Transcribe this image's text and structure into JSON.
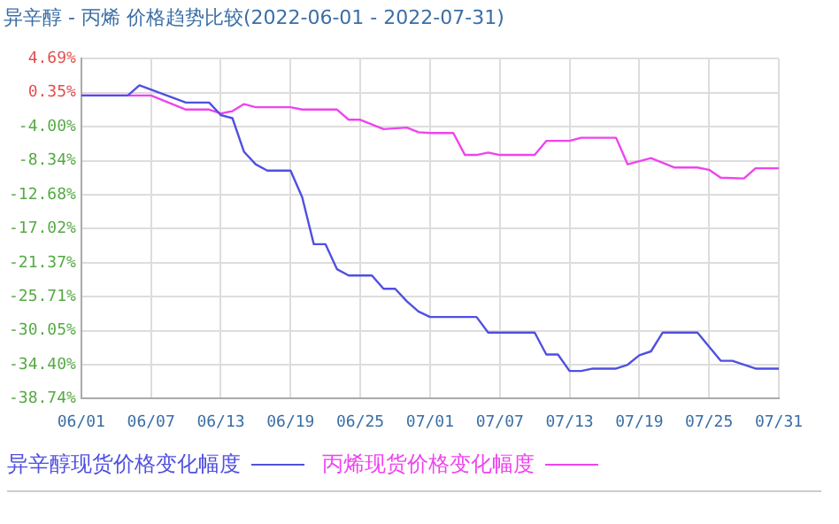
{
  "chart_data": {
    "type": "line",
    "title": "异辛醇 - 丙烯 价格趋势比较(2022-06-01 - 2022-07-31)",
    "series": [
      {
        "name": "异辛醇现货价格变化幅度",
        "color": "#5050e0",
        "x": [
          "2022-06-01",
          "2022-06-05",
          "2022-06-06",
          "2022-06-10",
          "2022-06-12",
          "2022-06-13",
          "2022-06-14",
          "2022-06-15",
          "2022-06-16",
          "2022-06-17",
          "2022-06-19",
          "2022-06-20",
          "2022-06-21",
          "2022-06-22",
          "2022-06-23",
          "2022-06-24",
          "2022-06-26",
          "2022-06-27",
          "2022-06-28",
          "2022-06-29",
          "2022-06-30",
          "2022-07-01",
          "2022-07-05",
          "2022-07-06",
          "2022-07-10",
          "2022-07-11",
          "2022-07-12",
          "2022-07-13",
          "2022-07-14",
          "2022-07-15",
          "2022-07-17",
          "2022-07-18",
          "2022-07-19",
          "2022-07-20",
          "2022-07-21",
          "2022-07-24",
          "2022-07-26",
          "2022-07-27",
          "2022-07-29",
          "2022-07-31"
        ],
        "values": [
          0,
          0,
          1.3,
          -0.9,
          -0.9,
          -2.5,
          -2.9,
          -7.2,
          -8.8,
          -9.6,
          -9.6,
          -13.0,
          -19.0,
          -19.0,
          -22.2,
          -23.0,
          -23.0,
          -24.7,
          -24.7,
          -26.3,
          -27.6,
          -28.3,
          -28.3,
          -30.3,
          -30.3,
          -33.1,
          -33.1,
          -35.2,
          -35.2,
          -34.9,
          -34.9,
          -34.4,
          -33.2,
          -32.7,
          -30.3,
          -30.3,
          -33.9,
          -33.9,
          -34.9,
          -34.9
        ]
      },
      {
        "name": "丙烯现货价格变化幅度",
        "color": "#ee44ee",
        "x": [
          "2022-06-01",
          "2022-06-07",
          "2022-06-10",
          "2022-06-12",
          "2022-06-13",
          "2022-06-14",
          "2022-06-15",
          "2022-06-16",
          "2022-06-19",
          "2022-06-20",
          "2022-06-23",
          "2022-06-24",
          "2022-06-25",
          "2022-06-27",
          "2022-06-29",
          "2022-06-30",
          "2022-07-01",
          "2022-07-03",
          "2022-07-04",
          "2022-07-05",
          "2022-07-06",
          "2022-07-07",
          "2022-07-10",
          "2022-07-11",
          "2022-07-13",
          "2022-07-14",
          "2022-07-17",
          "2022-07-18",
          "2022-07-20",
          "2022-07-22",
          "2022-07-24",
          "2022-07-25",
          "2022-07-26",
          "2022-07-28",
          "2022-07-29",
          "2022-07-31"
        ],
        "values": [
          0,
          0,
          -1.8,
          -1.8,
          -2.3,
          -2.0,
          -1.1,
          -1.5,
          -1.5,
          -1.8,
          -1.8,
          -3.1,
          -3.1,
          -4.3,
          -4.1,
          -4.7,
          -4.8,
          -4.8,
          -7.6,
          -7.6,
          -7.3,
          -7.6,
          -7.6,
          -5.8,
          -5.8,
          -5.4,
          -5.4,
          -8.8,
          -8.0,
          -9.2,
          -9.2,
          -9.5,
          -10.5,
          -10.6,
          -9.3,
          -9.3
        ]
      }
    ],
    "xlim": [
      "2022-06-01",
      "2022-07-31"
    ],
    "xticks": [
      {
        "value": "2022-06-01",
        "label": "06/01"
      },
      {
        "value": "2022-06-07",
        "label": "06/07"
      },
      {
        "value": "2022-06-13",
        "label": "06/13"
      },
      {
        "value": "2022-06-19",
        "label": "06/19"
      },
      {
        "value": "2022-06-25",
        "label": "06/25"
      },
      {
        "value": "2022-07-01",
        "label": "07/01"
      },
      {
        "value": "2022-07-07",
        "label": "07/07"
      },
      {
        "value": "2022-07-13",
        "label": "07/13"
      },
      {
        "value": "2022-07-19",
        "label": "07/19"
      },
      {
        "value": "2022-07-25",
        "label": "07/25"
      },
      {
        "value": "2022-07-31",
        "label": "07/31"
      }
    ],
    "ylim": [
      -38.74,
      4.69
    ],
    "yticks": [
      {
        "value": 4.69,
        "label": "4.69%"
      },
      {
        "value": 0.35,
        "label": "0.35%"
      },
      {
        "value": -4.0,
        "label": "-4.00%"
      },
      {
        "value": -8.34,
        "label": "-8.34%"
      },
      {
        "value": -12.68,
        "label": "-12.68%"
      },
      {
        "value": -17.02,
        "label": "-17.02%"
      },
      {
        "value": -21.37,
        "label": "-21.37%"
      },
      {
        "value": -25.71,
        "label": "-25.71%"
      },
      {
        "value": -30.05,
        "label": "-30.05%"
      },
      {
        "value": -34.4,
        "label": "-34.40%"
      },
      {
        "value": -38.74,
        "label": "-38.74%"
      }
    ],
    "grid": true,
    "legend": "bottom",
    "marker": "none",
    "line_style": "solid"
  }
}
